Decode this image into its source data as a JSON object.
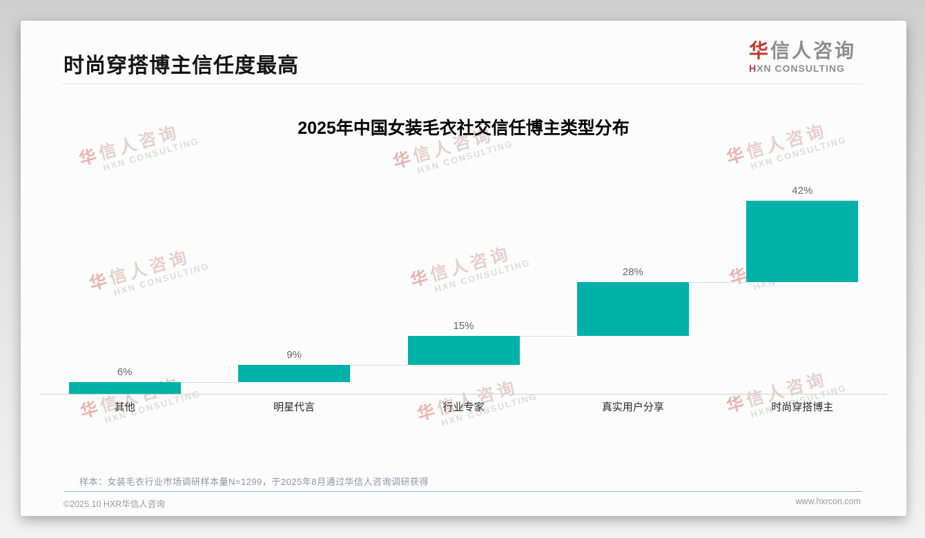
{
  "header": {
    "page_title": "时尚穿搭博主信任度最高",
    "logo": {
      "zh_accent": "华",
      "zh_rest": "信人咨询",
      "en_accent": "H",
      "en_rest": "XN CONSULTING"
    }
  },
  "chart_data": {
    "type": "bar",
    "subtype": "waterfall",
    "title": "2025年中国女装毛衣社交信任博主类型分布",
    "categories": [
      "其他",
      "明星代言",
      "行业专家",
      "真实用户分享",
      "时尚穿搭博主"
    ],
    "values": [
      6,
      9,
      15,
      28,
      42
    ],
    "value_labels": [
      "6%",
      "9%",
      "15%",
      "28%",
      "42%"
    ],
    "cumulative_start": [
      0,
      6,
      15,
      30,
      58
    ],
    "unit": "%",
    "ylim": [
      0,
      100
    ],
    "grid": false,
    "legend": false,
    "axis_labels_hidden": true,
    "bar_color": "#00B1A8",
    "connector_color": "#dcdcdc",
    "value_label_color": "#666666",
    "category_label_color": "#262626"
  },
  "footnote": {
    "sample_note": "样本：女装毛衣行业市场调研样本量N=1299，于2025年8月通过华信人咨询调研获得"
  },
  "footer": {
    "copyright": "©2025.10 HXR华信人咨询",
    "website": "www.hxrcon.com"
  },
  "watermark": {
    "zh": "华信人咨询",
    "en": "HXN CONSULTING"
  },
  "colors": {
    "accent_red": "#c23830",
    "teal": "#00B1A8"
  }
}
